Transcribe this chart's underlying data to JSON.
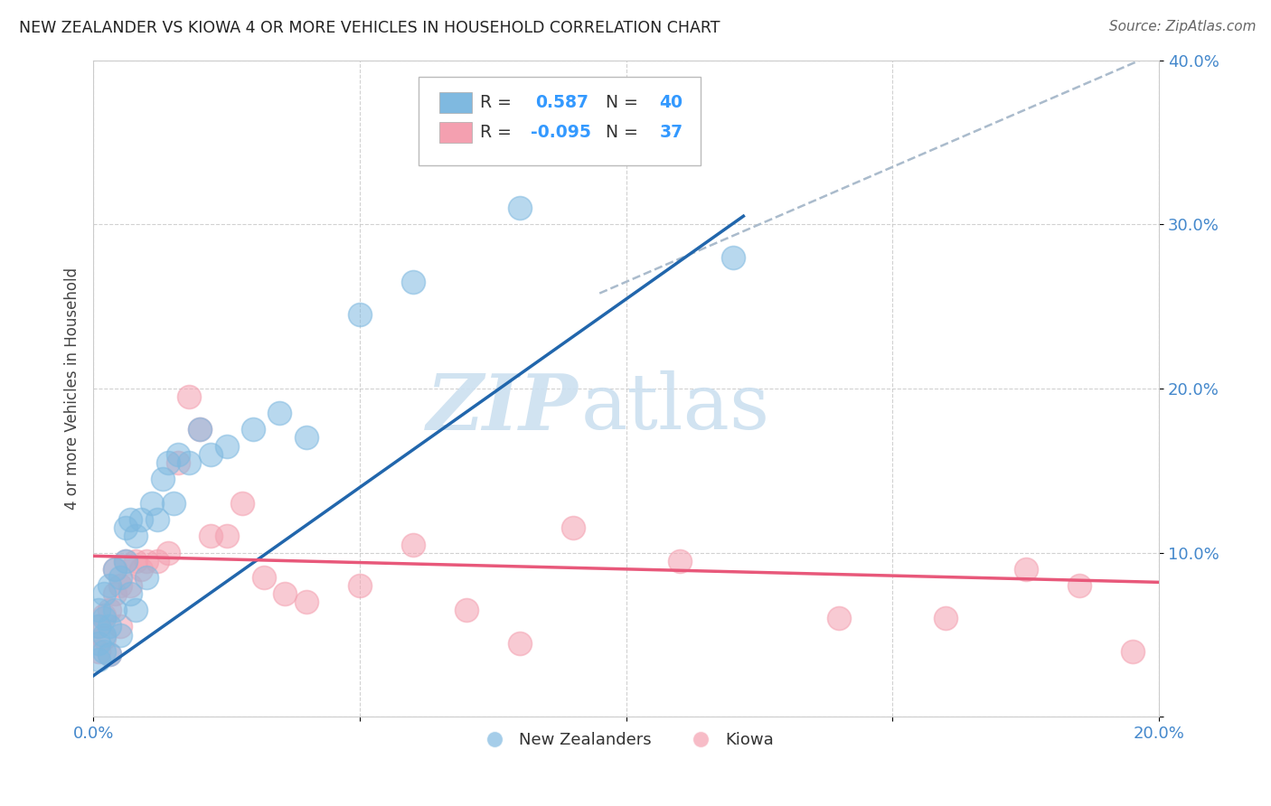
{
  "title": "NEW ZEALANDER VS KIOWA 4 OR MORE VEHICLES IN HOUSEHOLD CORRELATION CHART",
  "source": "Source: ZipAtlas.com",
  "ylabel_label": "4 or more Vehicles in Household",
  "x_min": 0.0,
  "x_max": 0.2,
  "y_min": 0.0,
  "y_max": 0.4,
  "x_ticks": [
    0.0,
    0.05,
    0.1,
    0.15,
    0.2
  ],
  "x_tick_labels": [
    "0.0%",
    "",
    "",
    "",
    "20.0%"
  ],
  "y_ticks": [
    0.0,
    0.1,
    0.2,
    0.3,
    0.4
  ],
  "y_tick_labels_right": [
    "",
    "10.0%",
    "20.0%",
    "30.0%",
    "40.0%"
  ],
  "blue_color": "#7fb9e0",
  "pink_color": "#f4a0b0",
  "blue_line_color": "#2166ac",
  "pink_line_color": "#e8587a",
  "R_blue": 0.587,
  "N_blue": 40,
  "R_pink": -0.095,
  "N_pink": 37,
  "legend_label_blue": "New Zealanders",
  "legend_label_pink": "Kiowa",
  "blue_scatter_x": [
    0.001,
    0.001,
    0.001,
    0.001,
    0.002,
    0.002,
    0.002,
    0.002,
    0.003,
    0.003,
    0.003,
    0.004,
    0.004,
    0.005,
    0.005,
    0.006,
    0.006,
    0.007,
    0.007,
    0.008,
    0.008,
    0.009,
    0.01,
    0.011,
    0.012,
    0.013,
    0.014,
    0.015,
    0.016,
    0.018,
    0.02,
    0.022,
    0.025,
    0.03,
    0.035,
    0.04,
    0.05,
    0.06,
    0.08,
    0.12
  ],
  "blue_scatter_y": [
    0.035,
    0.045,
    0.055,
    0.065,
    0.04,
    0.05,
    0.06,
    0.075,
    0.038,
    0.055,
    0.08,
    0.065,
    0.09,
    0.05,
    0.085,
    0.095,
    0.115,
    0.075,
    0.12,
    0.065,
    0.11,
    0.12,
    0.085,
    0.13,
    0.12,
    0.145,
    0.155,
    0.13,
    0.16,
    0.155,
    0.175,
    0.16,
    0.165,
    0.175,
    0.185,
    0.17,
    0.245,
    0.265,
    0.31,
    0.28
  ],
  "pink_scatter_x": [
    0.001,
    0.001,
    0.002,
    0.002,
    0.003,
    0.003,
    0.004,
    0.004,
    0.005,
    0.005,
    0.006,
    0.007,
    0.008,
    0.009,
    0.01,
    0.012,
    0.014,
    0.016,
    0.018,
    0.02,
    0.022,
    0.025,
    0.028,
    0.032,
    0.036,
    0.04,
    0.05,
    0.06,
    0.07,
    0.08,
    0.09,
    0.11,
    0.14,
    0.16,
    0.175,
    0.185,
    0.195
  ],
  "pink_scatter_y": [
    0.04,
    0.055,
    0.048,
    0.062,
    0.038,
    0.065,
    0.075,
    0.09,
    0.055,
    0.08,
    0.095,
    0.08,
    0.095,
    0.09,
    0.095,
    0.095,
    0.1,
    0.155,
    0.195,
    0.175,
    0.11,
    0.11,
    0.13,
    0.085,
    0.075,
    0.07,
    0.08,
    0.105,
    0.065,
    0.045,
    0.115,
    0.095,
    0.06,
    0.06,
    0.09,
    0.08,
    0.04
  ],
  "blue_line_x": [
    0.0,
    0.122
  ],
  "blue_line_y": [
    0.025,
    0.305
  ],
  "dash_line_x": [
    0.095,
    0.2
  ],
  "dash_line_y": [
    0.258,
    0.405
  ],
  "pink_line_x": [
    0.0,
    0.2
  ],
  "pink_line_y": [
    0.098,
    0.082
  ]
}
